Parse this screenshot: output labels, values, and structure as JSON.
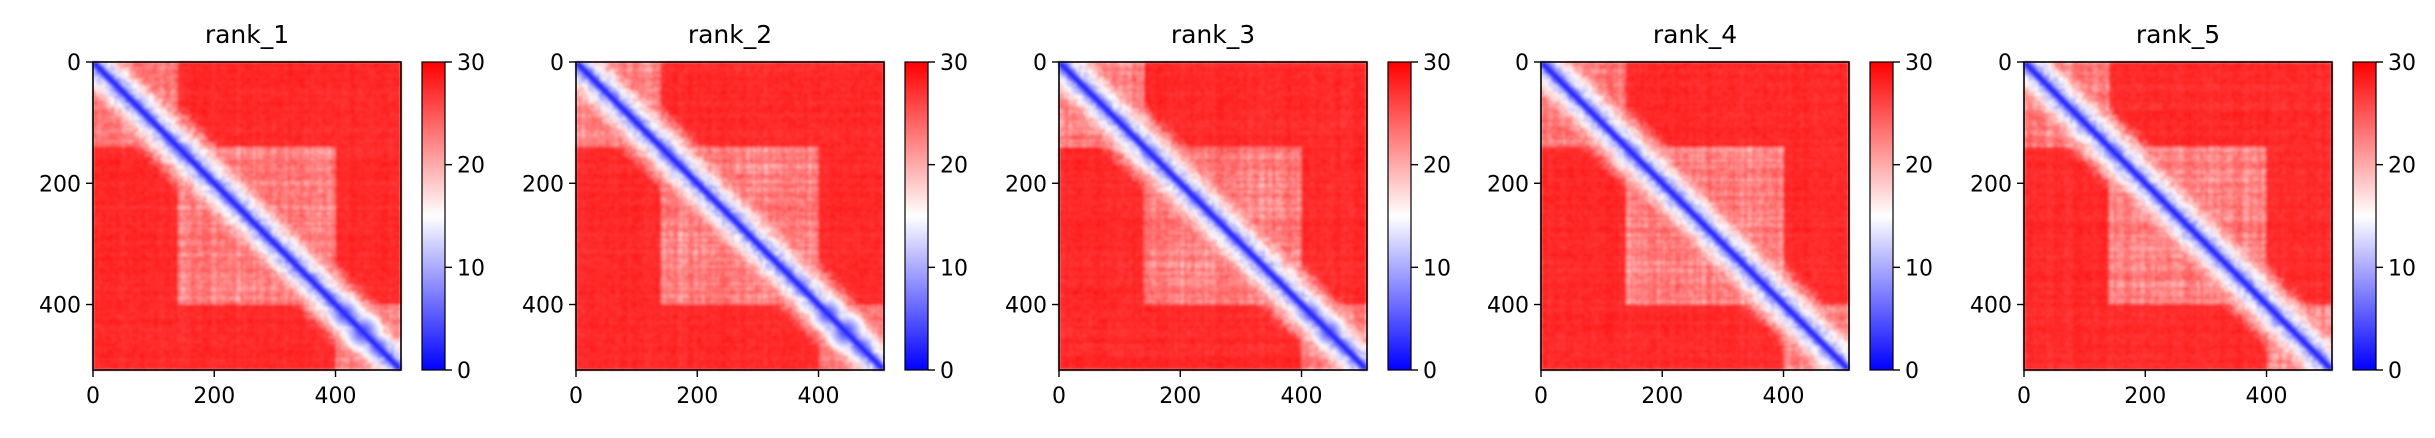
{
  "chart_data": [
    {
      "type": "heatmap",
      "title": "rank_1",
      "x_ticks": [
        0,
        200,
        400
      ],
      "y_ticks": [
        0,
        200,
        400
      ],
      "xlim": [
        0,
        508
      ],
      "ylim": [
        508,
        0
      ],
      "colorbar": {
        "ticks": [
          0,
          10,
          20,
          30
        ],
        "range": [
          0,
          30
        ],
        "colormap": "bwr"
      },
      "features": {
        "off_diagonal_mean": 29,
        "intra_blocks": [
          [
            0,
            140
          ],
          [
            140,
            400
          ],
          [
            400,
            508
          ]
        ],
        "blobs": [
          [
            50,
            8
          ],
          [
            95,
            9
          ],
          [
            150,
            11
          ],
          [
            225,
            10
          ],
          [
            305,
            6
          ],
          [
            390,
            6
          ],
          [
            415,
            14
          ],
          [
            445,
            16
          ],
          [
            470,
            12
          ]
        ]
      }
    },
    {
      "type": "heatmap",
      "title": "rank_2",
      "x_ticks": [
        0,
        200,
        400
      ],
      "y_ticks": [
        0,
        200,
        400
      ],
      "xlim": [
        0,
        508
      ],
      "ylim": [
        508,
        0
      ],
      "colorbar": {
        "ticks": [
          0,
          10,
          20,
          30
        ],
        "range": [
          0,
          30
        ],
        "colormap": "bwr"
      },
      "features": {
        "off_diagonal_mean": 29,
        "intra_blocks": [
          [
            0,
            140
          ],
          [
            140,
            400
          ],
          [
            400,
            508
          ]
        ],
        "blobs": [
          [
            150,
            11
          ],
          [
            225,
            7
          ],
          [
            305,
            6
          ],
          [
            415,
            14
          ],
          [
            445,
            16
          ],
          [
            470,
            12
          ]
        ]
      }
    },
    {
      "type": "heatmap",
      "title": "rank_3",
      "x_ticks": [
        0,
        200,
        400
      ],
      "y_ticks": [
        0,
        200,
        400
      ],
      "xlim": [
        0,
        508
      ],
      "ylim": [
        508,
        0
      ],
      "colorbar": {
        "ticks": [
          0,
          10,
          20,
          30
        ],
        "range": [
          0,
          30
        ],
        "colormap": "bwr"
      },
      "features": {
        "off_diagonal_mean": 29,
        "intra_blocks": [
          [
            0,
            140
          ],
          [
            140,
            400
          ],
          [
            400,
            508
          ]
        ],
        "blobs": [
          [
            45,
            8
          ],
          [
            150,
            11
          ],
          [
            225,
            10
          ],
          [
            305,
            6
          ],
          [
            415,
            12
          ],
          [
            445,
            14
          ],
          [
            470,
            10
          ]
        ]
      }
    },
    {
      "type": "heatmap",
      "title": "rank_4",
      "x_ticks": [
        0,
        200,
        400
      ],
      "y_ticks": [
        0,
        200,
        400
      ],
      "xlim": [
        0,
        508
      ],
      "ylim": [
        508,
        0
      ],
      "colorbar": {
        "ticks": [
          0,
          10,
          20,
          30
        ],
        "range": [
          0,
          30
        ],
        "colormap": "bwr"
      },
      "features": {
        "off_diagonal_mean": 29,
        "intra_blocks": [
          [
            0,
            140
          ],
          [
            140,
            400
          ],
          [
            400,
            508
          ]
        ],
        "blobs": [
          [
            150,
            11
          ],
          [
            228,
            8
          ],
          [
            270,
            7
          ],
          [
            305,
            6
          ],
          [
            410,
            8
          ],
          [
            450,
            7
          ]
        ]
      }
    },
    {
      "type": "heatmap",
      "title": "rank_5",
      "x_ticks": [
        0,
        200,
        400
      ],
      "y_ticks": [
        0,
        200,
        400
      ],
      "xlim": [
        0,
        508
      ],
      "ylim": [
        508,
        0
      ],
      "colorbar": {
        "ticks": [
          0,
          10,
          20,
          30
        ],
        "range": [
          0,
          30
        ],
        "colormap": "bwr"
      },
      "features": {
        "off_diagonal_mean": 29,
        "intra_blocks": [
          [
            0,
            140
          ],
          [
            140,
            400
          ],
          [
            400,
            508
          ]
        ],
        "blobs": [
          [
            45,
            7
          ],
          [
            150,
            11
          ],
          [
            225,
            9
          ],
          [
            305,
            6
          ],
          [
            365,
            6
          ],
          [
            410,
            8
          ],
          [
            455,
            7
          ]
        ]
      }
    }
  ]
}
